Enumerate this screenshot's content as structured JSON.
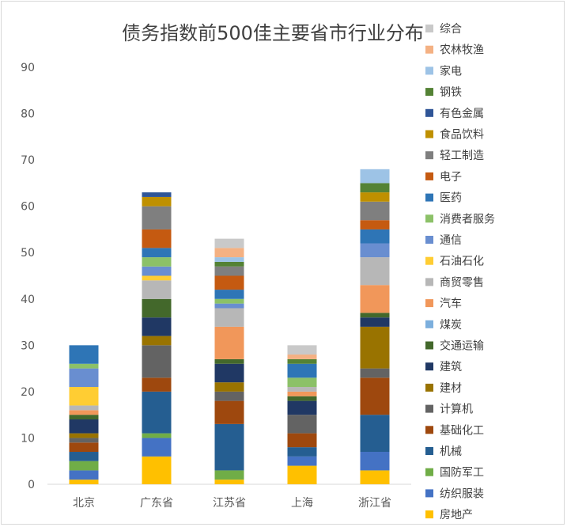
{
  "chart_data": {
    "type": "bar",
    "stacked": true,
    "title": "债务指数前500佳主要省市行业分布",
    "categories": [
      "北京",
      "广东省",
      "江苏省",
      "上海",
      "浙江省"
    ],
    "ylim": [
      0,
      90
    ],
    "yticks": [
      0,
      10,
      20,
      30,
      40,
      50,
      60,
      70,
      80,
      90
    ],
    "grid": false,
    "legend_position": "right",
    "series": [
      {
        "name": "综合",
        "color": "#BFBFBF",
        "values": [
          0,
          0,
          0,
          0,
          0
        ]
      },
      {
        "name": "房地产",
        "color": "#FFC000",
        "values": [
          1,
          6,
          1,
          4,
          3
        ]
      },
      {
        "name": "纺织服装",
        "color": "#4472C4",
        "values": [
          2,
          4,
          0,
          2,
          4
        ]
      },
      {
        "name": "国防军工",
        "color": "#70AD47",
        "values": [
          2,
          1,
          2,
          0,
          0
        ]
      },
      {
        "name": "机械",
        "color": "#255E91",
        "values": [
          2,
          9,
          10,
          2,
          8
        ]
      },
      {
        "name": "基础化工",
        "color": "#9E480E",
        "values": [
          2,
          3,
          5,
          3,
          8
        ]
      },
      {
        "name": "计算机",
        "color": "#636363",
        "values": [
          1,
          7,
          2,
          4,
          2
        ]
      },
      {
        "name": "建材",
        "color": "#997300",
        "values": [
          1,
          2,
          2,
          0,
          9
        ]
      },
      {
        "name": "建筑",
        "color": "#203864",
        "values": [
          3,
          4,
          4,
          3,
          2
        ]
      },
      {
        "name": "交通运输",
        "color": "#43682B",
        "values": [
          1,
          4,
          1,
          1,
          1
        ]
      },
      {
        "name": "煤炭",
        "color": "#7CAFDD",
        "values": [
          0,
          0,
          0,
          0,
          0
        ]
      },
      {
        "name": "汽车",
        "color": "#F1975A",
        "values": [
          1,
          0,
          7,
          1,
          6
        ]
      },
      {
        "name": "商贸零售",
        "color": "#B7B7B7",
        "values": [
          1,
          4,
          4,
          1,
          6
        ]
      },
      {
        "name": "石油石化",
        "color": "#FFCD33",
        "values": [
          4,
          1,
          0,
          0,
          0
        ]
      },
      {
        "name": "通信",
        "color": "#698ED0",
        "values": [
          4,
          2,
          1,
          0,
          3
        ]
      },
      {
        "name": "消费者服务",
        "color": "#8CC168",
        "values": [
          1,
          2,
          1,
          2,
          0
        ]
      },
      {
        "name": "医药",
        "color": "#2E75B6",
        "values": [
          4,
          2,
          2,
          3,
          3
        ]
      },
      {
        "name": "电子",
        "color": "#C55A11",
        "values": [
          0,
          4,
          3,
          0,
          2
        ]
      },
      {
        "name": "轻工制造",
        "color": "#7F7F7F",
        "values": [
          0,
          5,
          2,
          0,
          4
        ]
      },
      {
        "name": "食品饮料",
        "color": "#BF9000",
        "values": [
          0,
          2,
          0,
          0,
          2
        ]
      },
      {
        "name": "有色金属",
        "color": "#2F5597",
        "values": [
          0,
          1,
          0,
          0,
          0
        ]
      },
      {
        "name": "钢铁",
        "color": "#548235",
        "values": [
          0,
          0,
          1,
          1,
          2
        ]
      },
      {
        "name": "家电",
        "color": "#9DC3E6",
        "values": [
          0,
          0,
          1,
          0,
          3
        ]
      },
      {
        "name": "农林牧渔",
        "color": "#F4B183",
        "values": [
          0,
          0,
          2,
          1,
          0
        ]
      },
      {
        "name": "综合",
        "color": "#C9C9C9",
        "values": [
          0,
          0,
          2,
          2,
          0
        ]
      }
    ]
  }
}
